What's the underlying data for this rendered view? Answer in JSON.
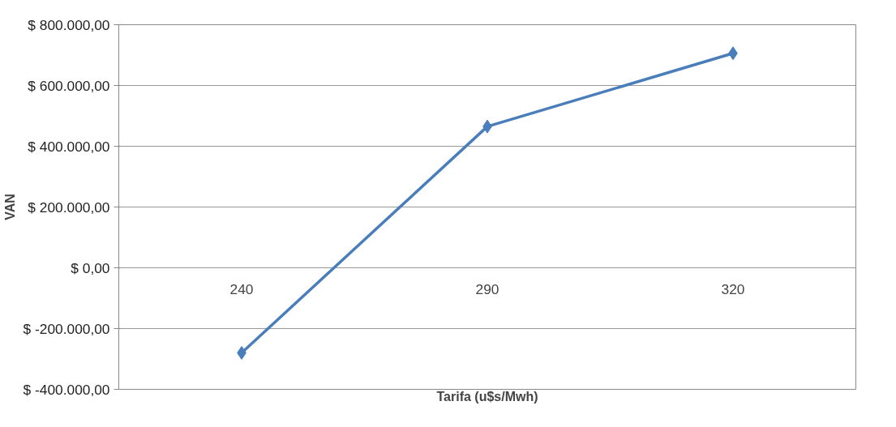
{
  "chart_data": {
    "type": "line",
    "xlabel": "Tarifa (u$s/Mwh)",
    "ylabel": "VAN",
    "categories": [
      "240",
      "290",
      "320"
    ],
    "series": [
      {
        "color": "#4a7ebb",
        "values": [
          -280000,
          465000,
          706000
        ]
      }
    ],
    "ylim": [
      -400000,
      800000
    ],
    "yticks": [
      {
        "value": -400000,
        "label": "$ -400.000,00"
      },
      {
        "value": -200000,
        "label": "$ -200.000,00"
      },
      {
        "value": 0,
        "label": "$ 0,00"
      },
      {
        "value": 200000,
        "label": "$ 200.000,00"
      },
      {
        "value": 400000,
        "label": "$ 400.000,00"
      },
      {
        "value": 600000,
        "label": "$ 600.000,00"
      },
      {
        "value": 800000,
        "label": "$ 800.000,00"
      }
    ],
    "grid": "y",
    "marker": "diamond",
    "line_style": "solid"
  }
}
